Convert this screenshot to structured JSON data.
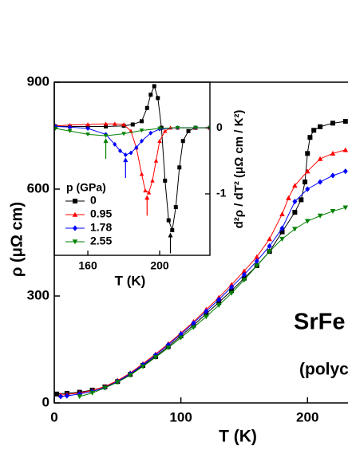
{
  "chart_data": [
    {
      "type": "scatter",
      "xlabel": "T (K)",
      "ylabel": "ρ (μΩ cm)",
      "xlim": [
        0,
        232
      ],
      "ylim": [
        0,
        900
      ],
      "xticks": [
        0,
        100,
        200
      ],
      "yticks": [
        0,
        300,
        600,
        900
      ],
      "annotations": [
        "SrFe",
        "(polyc"
      ],
      "series": [
        {
          "color": "#000000",
          "marker": "square",
          "x": [
            2,
            10,
            20,
            30,
            40,
            50,
            60,
            70,
            80,
            90,
            100,
            110,
            120,
            130,
            140,
            150,
            160,
            170,
            180,
            190,
            195,
            198,
            200,
            202,
            205,
            210,
            220,
            230
          ],
          "values": [
            25,
            27,
            30,
            36,
            45,
            60,
            80,
            105,
            130,
            158,
            188,
            218,
            250,
            282,
            315,
            350,
            385,
            425,
            480,
            535,
            570,
            620,
            700,
            745,
            765,
            775,
            785,
            790
          ]
        },
        {
          "color": "#ff0000",
          "marker": "triangle-up",
          "x": [
            5,
            10,
            20,
            30,
            40,
            50,
            60,
            70,
            80,
            90,
            100,
            110,
            120,
            130,
            140,
            150,
            160,
            170,
            180,
            185,
            190,
            200,
            210,
            220,
            230
          ],
          "values": [
            22,
            24,
            28,
            35,
            46,
            63,
            84,
            110,
            137,
            166,
            196,
            228,
            262,
            296,
            332,
            370,
            410,
            460,
            530,
            575,
            610,
            650,
            685,
            700,
            710
          ]
        },
        {
          "color": "#0000ff",
          "marker": "diamond",
          "x": [
            5,
            10,
            20,
            30,
            40,
            50,
            60,
            70,
            80,
            90,
            100,
            110,
            120,
            130,
            140,
            150,
            160,
            170,
            180,
            190,
            200,
            210,
            220,
            230
          ],
          "values": [
            18,
            20,
            25,
            32,
            43,
            60,
            82,
            107,
            134,
            163,
            193,
            224,
            257,
            290,
            325,
            360,
            398,
            440,
            490,
            565,
            600,
            620,
            638,
            650
          ]
        },
        {
          "color": "#008000",
          "marker": "triangle-down",
          "x": [
            20,
            30,
            40,
            50,
            60,
            70,
            80,
            90,
            100,
            110,
            120,
            130,
            140,
            150,
            160,
            170,
            180,
            190,
            200,
            210,
            220,
            230
          ],
          "values": [
            18,
            28,
            42,
            58,
            78,
            102,
            128,
            155,
            183,
            212,
            242,
            274,
            308,
            345,
            385,
            425,
            460,
            488,
            510,
            525,
            538,
            548
          ]
        }
      ]
    },
    {
      "type": "scatter",
      "xlabel": "T (K)",
      "ylabel": "d²ρ / dT² (μΩ cm / K²)",
      "xlim": [
        141.3,
        228
      ],
      "ylim": [
        -1.93,
        0.69
      ],
      "xticks": [
        160,
        200
      ],
      "yticks": [
        -1,
        0
      ],
      "legend_title": "p (GPa)",
      "arrows_x": [
        206,
        193,
        181,
        170
      ],
      "series": [
        {
          "name": "0",
          "color": "#000000",
          "marker": "square",
          "x": [
            142,
            150,
            160,
            170,
            180,
            185,
            190,
            193,
            195,
            197,
            199,
            201,
            203,
            205,
            207,
            209,
            211,
            213,
            216,
            220,
            228
          ],
          "values": [
            0.02,
            0.02,
            0.02,
            0.02,
            0.03,
            0.05,
            0.1,
            0.3,
            0.5,
            0.63,
            0.45,
            0,
            -0.8,
            -1.4,
            -1.55,
            -1.2,
            -0.6,
            -0.2,
            -0.05,
            0,
            0
          ]
        },
        {
          "name": "0.95",
          "color": "#ff0000",
          "marker": "triangle-up",
          "x": [
            142,
            150,
            160,
            170,
            175,
            180,
            184,
            187,
            190,
            192,
            194,
            196,
            198,
            200,
            203,
            206,
            210,
            220,
            228
          ],
          "values": [
            0.03,
            0.04,
            0.05,
            0.06,
            0.06,
            0.05,
            -0.05,
            -0.3,
            -0.7,
            -0.95,
            -0.98,
            -0.8,
            -0.5,
            -0.2,
            -0.05,
            0,
            0,
            0,
            0
          ]
        },
        {
          "name": "1.78",
          "color": "#0000ff",
          "marker": "diamond",
          "x": [
            142,
            150,
            160,
            170,
            175,
            178,
            181,
            184,
            187,
            190,
            195,
            200,
            210,
            220,
            228
          ],
          "values": [
            0.02,
            0.01,
            -0.01,
            -0.1,
            -0.25,
            -0.35,
            -0.41,
            -0.38,
            -0.3,
            -0.2,
            -0.08,
            -0.02,
            0,
            0,
            0
          ]
        },
        {
          "name": "2.55",
          "color": "#008000",
          "marker": "triangle-down",
          "x": [
            142,
            150,
            160,
            170,
            180,
            190,
            200,
            210,
            220,
            228
          ],
          "values": [
            -0.01,
            -0.05,
            -0.1,
            -0.12,
            -0.09,
            -0.04,
            -0.01,
            0,
            0,
            0
          ]
        }
      ]
    }
  ]
}
